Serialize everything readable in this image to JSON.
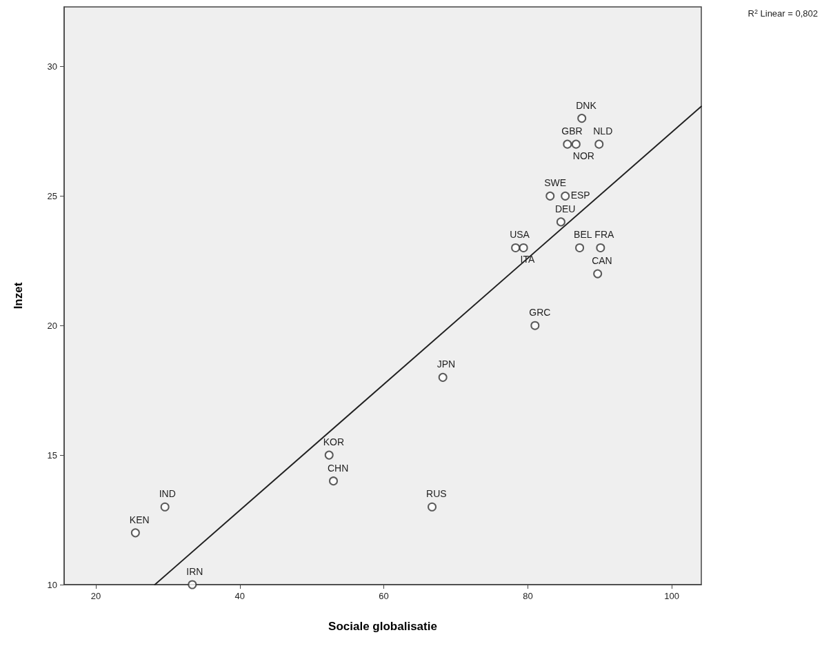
{
  "chart_data": {
    "type": "scatter",
    "xlabel": "Sociale globalisatie",
    "ylabel": "Inzet",
    "xlim": [
      15.6,
      104.1
    ],
    "xticks": [
      20,
      40,
      60,
      80,
      100
    ],
    "ylim": [
      10,
      32.3
    ],
    "yticks": [
      10,
      15,
      20,
      25,
      30
    ],
    "grid": false,
    "marker": "circle",
    "series": [
      {
        "color": "#333333",
        "x": [
          25.5,
          29.6,
          33.4,
          52.4,
          53.0,
          66.7,
          68.2,
          81.0,
          78.3,
          79.4,
          84.6,
          83.1,
          85.2,
          87.2,
          90.1,
          89.7,
          85.5,
          86.7,
          89.9,
          87.5
        ],
        "values": [
          12,
          13,
          10,
          15,
          14,
          13,
          18,
          20,
          23,
          23,
          24,
          25,
          25,
          23,
          23,
          22,
          27,
          27,
          27,
          28
        ]
      },
      {
        "type": "line",
        "color": "#222222",
        "marker": "none",
        "x": [
          28.2,
          104.1
        ],
        "values": [
          10,
          28.46
        ]
      }
    ],
    "annotations": [
      {
        "text": "KEN",
        "x": 25.5,
        "y": 12
      },
      {
        "text": "IND",
        "x": 29.6,
        "y": 13
      },
      {
        "text": "IRN",
        "x": 33.4,
        "y": 10
      },
      {
        "text": "KOR",
        "x": 52.4,
        "y": 15
      },
      {
        "text": "CHN",
        "x": 53.0,
        "y": 14
      },
      {
        "text": "RUS",
        "x": 66.7,
        "y": 13
      },
      {
        "text": "JPN",
        "x": 68.2,
        "y": 18
      },
      {
        "text": "GRC",
        "x": 81.0,
        "y": 20
      },
      {
        "text": "USA",
        "x": 78.3,
        "y": 23
      },
      {
        "text": "ITA",
        "x": 79.4,
        "y": 23
      },
      {
        "text": "DEU",
        "x": 84.6,
        "y": 24
      },
      {
        "text": "SWE",
        "x": 83.1,
        "y": 25
      },
      {
        "text": "ESP",
        "x": 85.2,
        "y": 25
      },
      {
        "text": "BEL",
        "x": 87.2,
        "y": 23
      },
      {
        "text": "FRA",
        "x": 90.1,
        "y": 23
      },
      {
        "text": "CAN",
        "x": 89.7,
        "y": 22
      },
      {
        "text": "GBR",
        "x": 85.5,
        "y": 27
      },
      {
        "text": "NOR",
        "x": 86.7,
        "y": 27
      },
      {
        "text": "NLD",
        "x": 89.9,
        "y": 27
      },
      {
        "text": "DNK",
        "x": 87.5,
        "y": 28
      },
      "R$^{2}$ Linear = 0,802"
    ]
  }
}
